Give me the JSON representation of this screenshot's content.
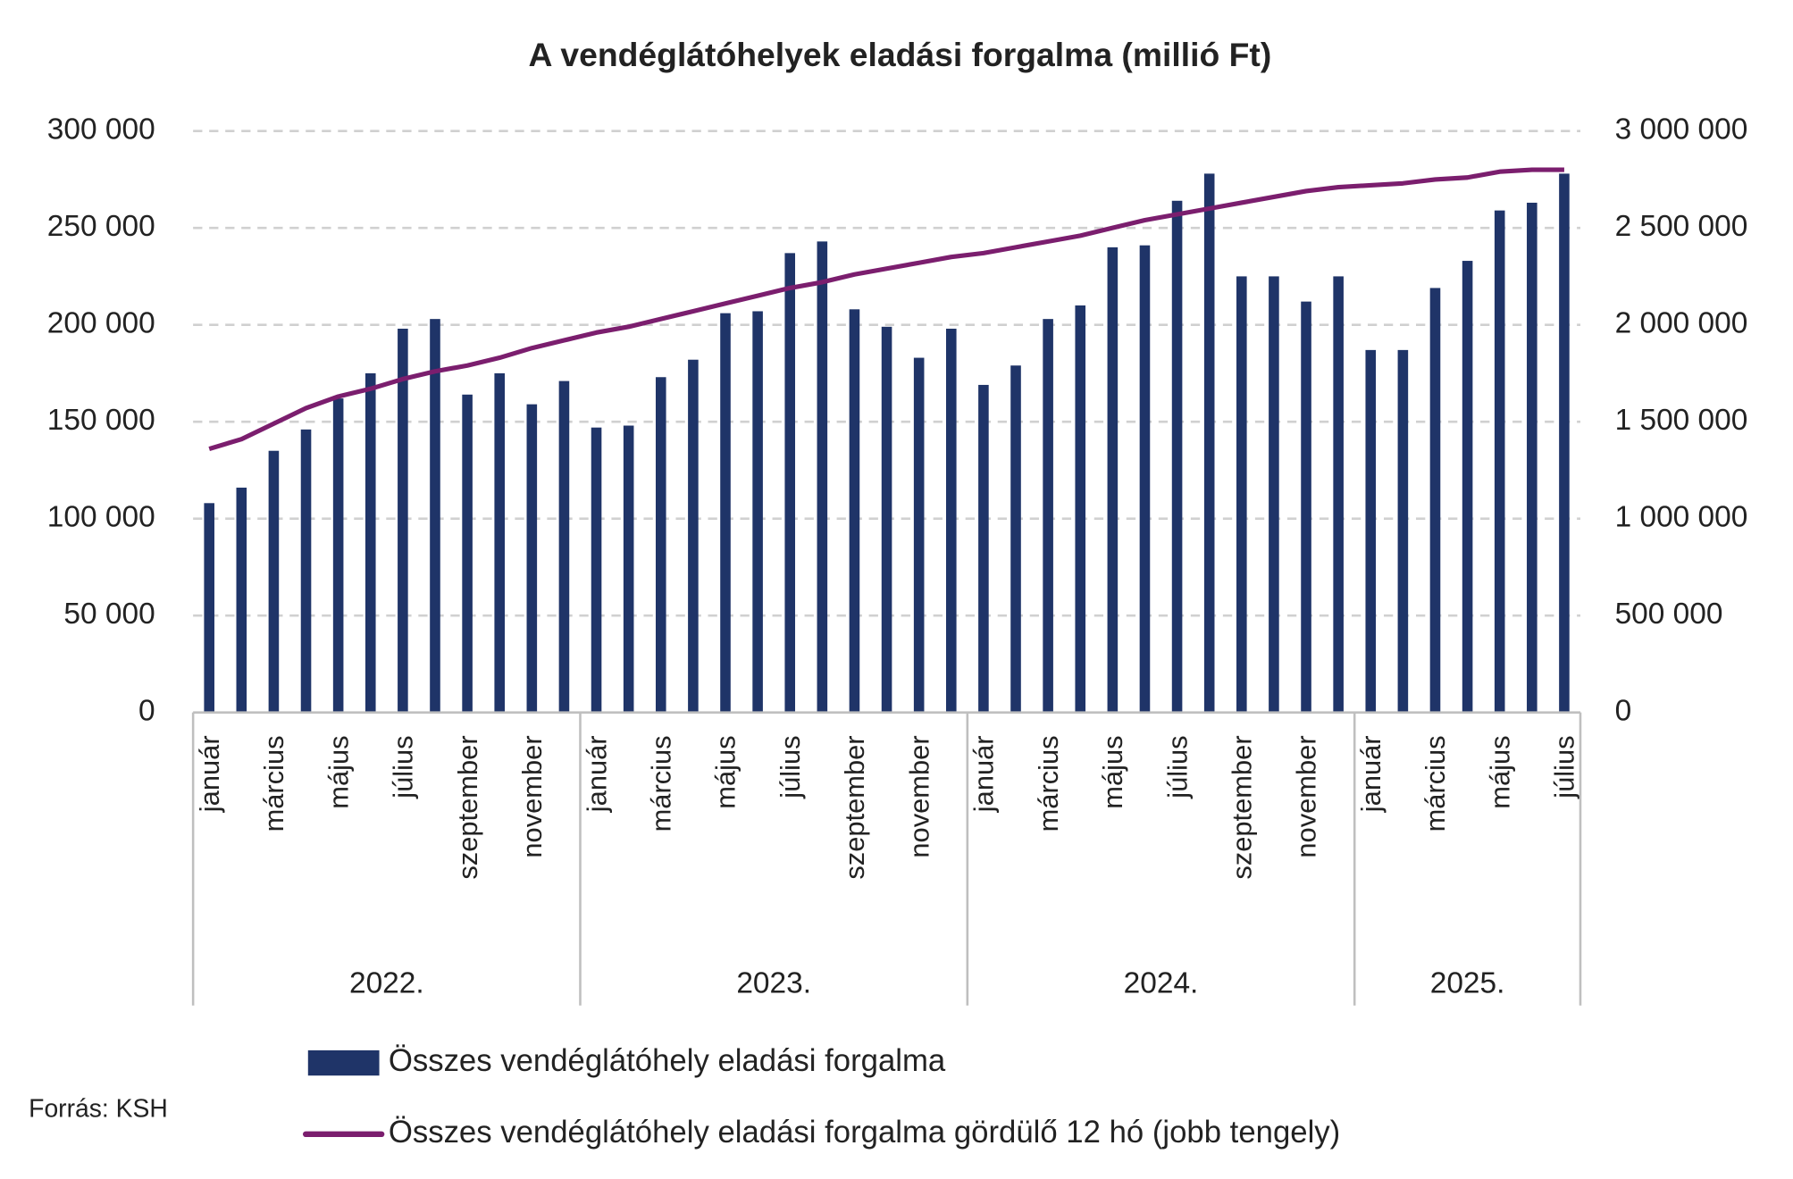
{
  "chart_data": {
    "type": "bar-line",
    "title": "A vendéglátóhelyek eladási forgalma (millió Ft)",
    "categories": [
      "január",
      null,
      "március",
      null,
      "május",
      null,
      "július",
      null,
      "szeptember",
      null,
      "november",
      null,
      "január",
      null,
      "március",
      null,
      "május",
      null,
      "július",
      null,
      "szeptember",
      null,
      "november",
      null,
      "január",
      null,
      "március",
      null,
      "május",
      null,
      "július",
      null,
      "szeptember",
      null,
      "november",
      null,
      "január",
      null,
      "március",
      null,
      "május",
      null,
      "július"
    ],
    "year_groups": [
      "2022.",
      "2023.",
      "2024.",
      "2025."
    ],
    "series": [
      {
        "name": "Összes vendéglátóhely eladási forgalma",
        "type": "bar",
        "color": "#1f3468",
        "values": [
          108000,
          116000,
          135000,
          146000,
          162000,
          175000,
          198000,
          203000,
          164000,
          175000,
          159000,
          171000,
          147000,
          148000,
          173000,
          182000,
          206000,
          207000,
          237000,
          243000,
          208000,
          199000,
          183000,
          198000,
          169000,
          179000,
          203000,
          210000,
          240000,
          241000,
          264000,
          278000,
          225000,
          225000,
          212000,
          225000,
          187000,
          187000,
          219000,
          233000,
          259000,
          263000,
          278000
        ]
      },
      {
        "name": "Összes vendéglátóhely eladási forgalma gördülő 12 hó (jobb tengely)",
        "type": "line",
        "axis": "y2",
        "color": "#7b1e6e",
        "values": [
          1360000,
          1410000,
          1490000,
          1570000,
          1630000,
          1670000,
          1720000,
          1760000,
          1790000,
          1830000,
          1880000,
          1920000,
          1960000,
          1990000,
          2030000,
          2070000,
          2110000,
          2150000,
          2190000,
          2220000,
          2260000,
          2290000,
          2320000,
          2350000,
          2370000,
          2400000,
          2430000,
          2460000,
          2500000,
          2540000,
          2570000,
          2600000,
          2630000,
          2660000,
          2690000,
          2710000,
          2720000,
          2730000,
          2750000,
          2760000,
          2790000,
          2800000,
          2800000
        ]
      }
    ],
    "ylim": [
      0,
      300000
    ],
    "yticks": [
      0,
      {
        "value": 50000,
        "label": "50 000"
      },
      {
        "value": 100000,
        "label": "100 000"
      },
      {
        "value": 150000,
        "label": "150 000"
      },
      {
        "value": 200000,
        "label": "200 000"
      },
      {
        "value": 250000,
        "label": "250 000"
      },
      {
        "value": 300000,
        "label": "300 000"
      }
    ],
    "y2lim": [
      0,
      3000000
    ],
    "y2ticks": [
      0,
      {
        "value": 500000,
        "label": "500 000"
      },
      {
        "value": 1000000,
        "label": "1 000 000"
      },
      {
        "value": 1500000,
        "label": "1 500 000"
      },
      {
        "value": 2000000,
        "label": "2 000 000"
      },
      {
        "value": 2500000,
        "label": "2 500 000"
      },
      {
        "value": 3000000,
        "label": "3 000 000"
      }
    ],
    "grid": true,
    "legend_position": "bottom",
    "source": "Forrás: KSH"
  }
}
